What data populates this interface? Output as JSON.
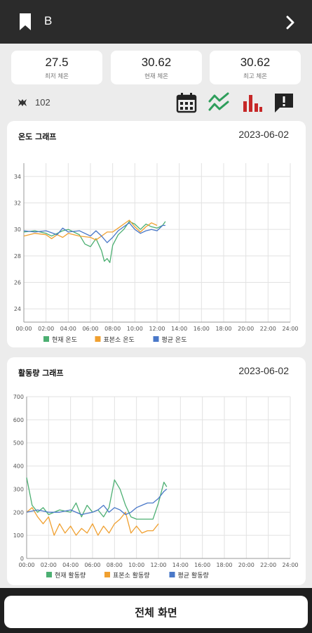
{
  "header": {
    "title": "B",
    "bookmark_icon": "bookmark-icon",
    "next_icon": "chevron-right-icon"
  },
  "stats": [
    {
      "value": "27.5",
      "label": "최저 체온"
    },
    {
      "value": "30.62",
      "label": "현재 체온"
    },
    {
      "value": "30.62",
      "label": "최고 체온"
    }
  ],
  "device": {
    "icon": "sensor-icon",
    "value": "102"
  },
  "toolbar": [
    {
      "name": "calendar-icon",
      "color": "#222222"
    },
    {
      "name": "line-chart-icon",
      "color": "#2e9e5b"
    },
    {
      "name": "bar-chart-icon",
      "color": "#c62828"
    },
    {
      "name": "alert-message-icon",
      "color": "#222222"
    }
  ],
  "temp_card": {
    "title": "온도 그래프",
    "date": "2023-06-02"
  },
  "activity_card": {
    "title": "활동량 그래프",
    "date": "2023-06-02"
  },
  "footer": {
    "full_screen_label": "전체 화면"
  },
  "chart_data": [
    {
      "type": "line",
      "x_ticks": [
        "00:00",
        "02:00",
        "04:00",
        "06:00",
        "08:00",
        "10:00",
        "12:00",
        "14:00",
        "16:00",
        "18:00",
        "20:00",
        "22:00",
        "24:00"
      ],
      "ylim": [
        23,
        35
      ],
      "y_ticks": [
        24,
        26,
        28,
        30,
        32,
        34
      ],
      "grid": true,
      "legend": "bottom",
      "series": [
        {
          "name": "현재 온도",
          "color": "#4caf72",
          "x": [
            0,
            1,
            2,
            2.5,
            3,
            3.5,
            4,
            4.5,
            5,
            5.5,
            6,
            6.5,
            7,
            7.25,
            7.5,
            7.75,
            8,
            8.5,
            9,
            9.5,
            10,
            10.5,
            11,
            11.5,
            12,
            12.5,
            12.75
          ],
          "y": [
            29.8,
            29.9,
            29.7,
            29.5,
            29.7,
            29.9,
            30.0,
            29.8,
            29.6,
            28.9,
            28.7,
            29.3,
            28.4,
            27.6,
            27.8,
            27.5,
            28.8,
            29.6,
            30.0,
            30.6,
            30.4,
            30.0,
            30.4,
            30.2,
            30.1,
            30.3,
            30.6
          ]
        },
        {
          "name": "표본소 온도",
          "color": "#f0a030",
          "x": [
            0,
            1,
            2,
            2.5,
            3,
            3.5,
            4,
            5,
            6,
            6.5,
            7,
            7.5,
            8,
            8.5,
            9,
            9.5,
            10,
            10.5,
            11,
            11.5,
            12
          ],
          "y": [
            29.5,
            29.7,
            29.6,
            29.3,
            29.6,
            29.4,
            29.7,
            29.5,
            29.4,
            29.2,
            29.5,
            29.8,
            29.8,
            30.1,
            30.4,
            30.7,
            30.2,
            29.8,
            30.2,
            30.5,
            30.3
          ]
        },
        {
          "name": "평균 온도",
          "color": "#4a78c8",
          "x": [
            0,
            1,
            2,
            3,
            3.5,
            4,
            5,
            6,
            6.5,
            7,
            7.5,
            8,
            8.5,
            9,
            9.5,
            10,
            10.5,
            11,
            11.5,
            12,
            12.5,
            12.75
          ],
          "y": [
            29.9,
            29.8,
            29.9,
            29.6,
            30.1,
            29.8,
            29.9,
            29.5,
            29.9,
            29.5,
            29.0,
            29.4,
            29.9,
            30.2,
            30.5,
            30.0,
            29.7,
            29.9,
            30.0,
            29.9,
            30.3,
            30.3
          ]
        }
      ]
    },
    {
      "type": "line",
      "x_ticks": [
        "00:00",
        "02:00",
        "04:00",
        "06:00",
        "08:00",
        "10:00",
        "12:00",
        "14:00",
        "16:00",
        "18:00",
        "20:00",
        "22:00",
        "24:00"
      ],
      "ylim": [
        0,
        700
      ],
      "y_ticks": [
        0,
        100,
        200,
        300,
        400,
        500,
        600,
        700
      ],
      "grid": true,
      "legend": "bottom",
      "series": [
        {
          "name": "현재 활동량",
          "color": "#4caf72",
          "x": [
            0,
            0.5,
            1,
            1.5,
            2,
            3,
            4,
            4.5,
            5,
            5.5,
            6,
            6.5,
            7,
            7.5,
            8,
            8.5,
            9,
            9.5,
            10,
            10.5,
            11,
            11.5,
            12,
            12.5,
            12.75
          ],
          "y": [
            350,
            230,
            200,
            220,
            190,
            210,
            200,
            240,
            180,
            230,
            200,
            210,
            180,
            220,
            340,
            300,
            230,
            180,
            170,
            170,
            170,
            170,
            240,
            330,
            310
          ]
        },
        {
          "name": "표본소 활동량",
          "color": "#f0a030",
          "x": [
            0,
            0.5,
            1,
            1.5,
            2,
            2.5,
            3,
            3.5,
            4,
            4.5,
            5,
            5.5,
            6,
            6.5,
            7,
            7.5,
            8,
            8.5,
            9,
            9.5,
            10,
            10.5,
            11,
            11.5,
            12
          ],
          "y": [
            200,
            220,
            180,
            150,
            180,
            100,
            150,
            110,
            140,
            100,
            130,
            110,
            150,
            100,
            140,
            110,
            150,
            170,
            200,
            110,
            140,
            110,
            120,
            120,
            150
          ]
        },
        {
          "name": "평균 활동량",
          "color": "#4a78c8",
          "x": [
            0,
            1,
            2,
            3,
            4,
            5,
            6,
            6.5,
            7,
            7.5,
            8,
            8.5,
            9,
            9.5,
            10,
            10.5,
            11,
            11.5,
            12,
            12.5,
            12.75
          ],
          "y": [
            200,
            210,
            200,
            200,
            210,
            190,
            200,
            210,
            230,
            200,
            220,
            210,
            190,
            200,
            220,
            230,
            240,
            240,
            260,
            290,
            300
          ]
        }
      ]
    }
  ]
}
